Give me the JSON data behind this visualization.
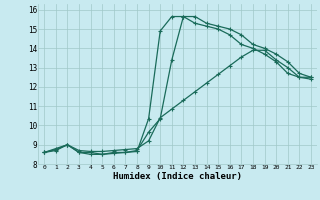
{
  "xlabel": "Humidex (Indice chaleur)",
  "bg_color": "#c8eaf0",
  "line_color": "#1a6b5a",
  "grid_color": "#a0c8c8",
  "xlim": [
    -0.5,
    23.5
  ],
  "ylim": [
    8,
    16.3
  ],
  "xticks": [
    0,
    1,
    2,
    3,
    4,
    5,
    6,
    7,
    8,
    9,
    10,
    11,
    12,
    13,
    14,
    15,
    16,
    17,
    18,
    19,
    20,
    21,
    22,
    23
  ],
  "yticks": [
    8,
    9,
    10,
    11,
    12,
    13,
    14,
    15,
    16
  ],
  "curve1_x": [
    0,
    1,
    2,
    3,
    4,
    5,
    6,
    7,
    8,
    9,
    10,
    11,
    12,
    13,
    14,
    15,
    16,
    17,
    18,
    19,
    20,
    21,
    22,
    23
  ],
  "curve1_y": [
    8.6,
    8.8,
    9.0,
    8.6,
    8.6,
    8.5,
    8.55,
    8.6,
    8.65,
    10.35,
    14.9,
    15.65,
    15.65,
    15.3,
    15.15,
    15.0,
    14.7,
    14.2,
    14.0,
    13.7,
    13.3,
    12.7,
    12.5,
    12.5
  ],
  "curve2_x": [
    0,
    1,
    2,
    3,
    4,
    5,
    6,
    7,
    8,
    9,
    10,
    11,
    12,
    13,
    14,
    15,
    16,
    17,
    18,
    19,
    20,
    21,
    22,
    23
  ],
  "curve2_y": [
    8.6,
    8.7,
    9.0,
    8.6,
    8.5,
    8.5,
    8.6,
    8.6,
    8.7,
    9.65,
    10.35,
    13.4,
    15.65,
    15.65,
    15.3,
    15.15,
    15.0,
    14.7,
    14.2,
    14.0,
    13.7,
    13.3,
    12.7,
    12.5
  ],
  "curve3_x": [
    0,
    1,
    2,
    3,
    4,
    5,
    6,
    7,
    8,
    9,
    10,
    11,
    12,
    13,
    14,
    15,
    16,
    17,
    18,
    19,
    20,
    21,
    22,
    23
  ],
  "curve3_y": [
    8.6,
    8.75,
    9.0,
    8.7,
    8.65,
    8.65,
    8.7,
    8.75,
    8.8,
    9.2,
    10.4,
    10.85,
    11.3,
    11.75,
    12.2,
    12.65,
    13.1,
    13.55,
    13.9,
    13.9,
    13.4,
    13.0,
    12.5,
    12.4
  ]
}
